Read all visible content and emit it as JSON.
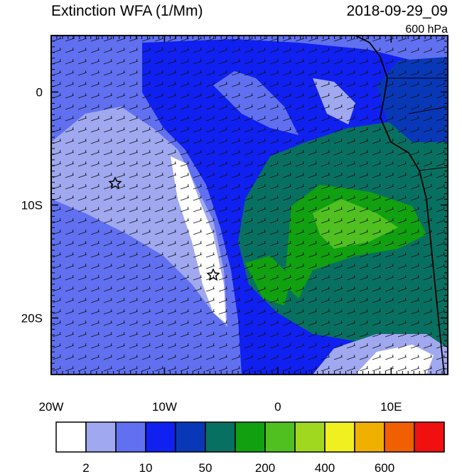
{
  "header": {
    "title": "Extinction WFA (1/Mm)",
    "date": "2018-09-29_09",
    "level": "600 hPa"
  },
  "map": {
    "lonlim": [
      -20,
      15
    ],
    "latlim": [
      -25,
      5
    ],
    "lonticks": [
      {
        "value": -20,
        "label": "20W"
      },
      {
        "value": -10,
        "label": "10W"
      },
      0,
      {
        "value": 10,
        "label": "10E"
      }
    ],
    "latticks": [
      0,
      {
        "value": -10,
        "label": "10S"
      },
      {
        "value": -20,
        "label": "20S"
      }
    ]
  },
  "colorbar": {
    "colors": [
      "#ffffff",
      "#a0a8f0",
      "#6070f0",
      "#1020f0",
      "#0838b8",
      "#087060",
      "#10a010",
      "#50c020",
      "#a0d820",
      "#f0f020",
      "#f0b000",
      "#f06000",
      "#f01010"
    ],
    "labels": [
      2,
      10,
      50,
      200,
      400,
      600
    ]
  }
}
